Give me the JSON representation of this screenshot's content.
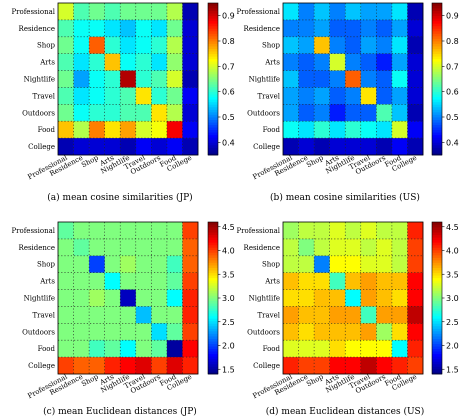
{
  "figure": {
    "colormap": "jet",
    "categories": [
      "Professional",
      "Residence",
      "Shop",
      "Arts",
      "Nightlife",
      "Travel",
      "Outdoors",
      "Food",
      "College"
    ]
  },
  "chart_data": [
    {
      "type": "heatmap",
      "caption": "(a)  mean cosine similarities (JP)",
      "categories": [
        "Professional",
        "Residence",
        "Shop",
        "Arts",
        "Nightlife",
        "Travel",
        "Outdoors",
        "Food",
        "College"
      ],
      "vmin": 0.35,
      "vmax": 0.95,
      "colorbar_ticks": [
        0.4,
        0.5,
        0.6,
        0.7,
        0.8,
        0.9
      ],
      "values": [
        [
          0.7,
          0.62,
          0.64,
          0.62,
          0.64,
          0.64,
          0.64,
          0.68,
          0.38
        ],
        [
          0.62,
          0.58,
          0.58,
          0.56,
          0.54,
          0.58,
          0.56,
          0.64,
          0.4
        ],
        [
          0.64,
          0.58,
          0.82,
          0.6,
          0.56,
          0.58,
          0.6,
          0.68,
          0.4
        ],
        [
          0.62,
          0.56,
          0.6,
          0.76,
          0.58,
          0.6,
          0.56,
          0.66,
          0.4
        ],
        [
          0.64,
          0.52,
          0.58,
          0.6,
          0.92,
          0.6,
          0.62,
          0.7,
          0.38
        ],
        [
          0.62,
          0.56,
          0.58,
          0.6,
          0.62,
          0.74,
          0.6,
          0.64,
          0.42
        ],
        [
          0.64,
          0.58,
          0.6,
          0.6,
          0.62,
          0.62,
          0.74,
          0.68,
          0.4
        ],
        [
          0.76,
          0.68,
          0.8,
          0.74,
          0.78,
          0.7,
          0.72,
          0.88,
          0.42
        ],
        [
          0.38,
          0.4,
          0.4,
          0.4,
          0.38,
          0.42,
          0.4,
          0.42,
          0.38
        ]
      ]
    },
    {
      "type": "heatmap",
      "caption": "(b)  mean cosine similarities (US)",
      "categories": [
        "Professional",
        "Residence",
        "Shop",
        "Arts",
        "Nightlife",
        "Travel",
        "Outdoors",
        "Food",
        "College"
      ],
      "vmin": 0.35,
      "vmax": 0.95,
      "colorbar_ticks": [
        0.4,
        0.5,
        0.6,
        0.7,
        0.8,
        0.9
      ],
      "values": [
        [
          0.56,
          0.5,
          0.54,
          0.5,
          0.54,
          0.52,
          0.52,
          0.56,
          0.38
        ],
        [
          0.5,
          0.5,
          0.52,
          0.48,
          0.48,
          0.5,
          0.48,
          0.52,
          0.4
        ],
        [
          0.54,
          0.52,
          0.76,
          0.5,
          0.48,
          0.52,
          0.5,
          0.56,
          0.38
        ],
        [
          0.5,
          0.48,
          0.5,
          0.7,
          0.5,
          0.48,
          0.44,
          0.52,
          0.4
        ],
        [
          0.54,
          0.48,
          0.48,
          0.5,
          0.82,
          0.5,
          0.48,
          0.58,
          0.4
        ],
        [
          0.52,
          0.5,
          0.52,
          0.48,
          0.5,
          0.74,
          0.48,
          0.52,
          0.4
        ],
        [
          0.52,
          0.48,
          0.5,
          0.44,
          0.48,
          0.48,
          0.62,
          0.54,
          0.38
        ],
        [
          0.58,
          0.56,
          0.6,
          0.56,
          0.6,
          0.58,
          0.56,
          0.7,
          0.42
        ],
        [
          0.38,
          0.4,
          0.38,
          0.4,
          0.4,
          0.4,
          0.38,
          0.42,
          0.38
        ]
      ]
    },
    {
      "type": "heatmap",
      "caption": "(c)  mean Euclidean distances (JP)",
      "categories": [
        "Professional",
        "Residence",
        "Shop",
        "Arts",
        "Nightlife",
        "Travel",
        "Outdoors",
        "Food",
        "College"
      ],
      "vmin": 1.4,
      "vmax": 4.6,
      "colorbar_ticks": [
        1.5,
        2.0,
        2.5,
        3.0,
        3.5,
        4.0,
        4.5
      ],
      "values": [
        [
          2.9,
          3.0,
          3.0,
          3.0,
          3.0,
          3.0,
          3.0,
          3.0,
          4.0
        ],
        [
          3.0,
          2.9,
          3.0,
          3.0,
          3.0,
          3.0,
          3.0,
          3.0,
          3.9
        ],
        [
          3.0,
          3.0,
          2.0,
          3.0,
          3.1,
          3.0,
          3.0,
          2.8,
          3.9
        ],
        [
          3.0,
          3.0,
          3.0,
          2.6,
          3.0,
          3.0,
          3.0,
          2.9,
          4.0
        ],
        [
          3.0,
          3.0,
          3.1,
          3.0,
          1.6,
          3.0,
          3.0,
          2.6,
          4.1
        ],
        [
          3.0,
          3.0,
          3.0,
          3.0,
          3.0,
          2.4,
          3.0,
          3.0,
          4.1
        ],
        [
          3.0,
          3.0,
          3.0,
          3.0,
          3.0,
          3.0,
          2.5,
          2.9,
          4.0
        ],
        [
          3.0,
          3.0,
          2.8,
          2.9,
          2.6,
          3.0,
          2.9,
          1.5,
          4.2
        ],
        [
          4.0,
          3.9,
          3.9,
          4.1,
          4.2,
          4.3,
          4.0,
          4.3,
          4.1
        ]
      ]
    },
    {
      "type": "heatmap",
      "caption": "(d)  mean Euclidean distances (US)",
      "categories": [
        "Professional",
        "Residence",
        "Shop",
        "Arts",
        "Nightlife",
        "Travel",
        "Outdoors",
        "Food",
        "College"
      ],
      "vmin": 1.4,
      "vmax": 4.6,
      "colorbar_ticks": [
        1.5,
        2.0,
        2.5,
        3.0,
        3.5,
        4.0,
        4.5
      ],
      "values": [
        [
          3.1,
          3.2,
          3.2,
          3.3,
          3.2,
          3.3,
          3.2,
          3.2,
          4.1
        ],
        [
          3.2,
          3.0,
          3.2,
          3.3,
          3.3,
          3.2,
          3.3,
          3.2,
          4.0
        ],
        [
          3.2,
          3.2,
          2.2,
          3.4,
          3.4,
          3.3,
          3.3,
          3.2,
          4.0
        ],
        [
          3.6,
          3.5,
          3.5,
          2.8,
          3.6,
          3.7,
          3.6,
          3.6,
          4.2
        ],
        [
          3.5,
          3.5,
          3.6,
          3.6,
          2.6,
          3.7,
          3.6,
          3.5,
          4.2
        ],
        [
          3.7,
          3.6,
          3.6,
          3.7,
          3.7,
          2.8,
          3.7,
          3.7,
          4.4
        ],
        [
          3.6,
          3.5,
          3.6,
          3.6,
          3.6,
          3.7,
          3.1,
          3.5,
          4.2
        ],
        [
          3.3,
          3.3,
          3.3,
          3.5,
          3.4,
          3.4,
          3.4,
          2.6,
          4.1
        ],
        [
          4.1,
          4.0,
          4.0,
          4.2,
          4.2,
          4.4,
          4.2,
          4.1,
          4.0
        ]
      ]
    }
  ]
}
